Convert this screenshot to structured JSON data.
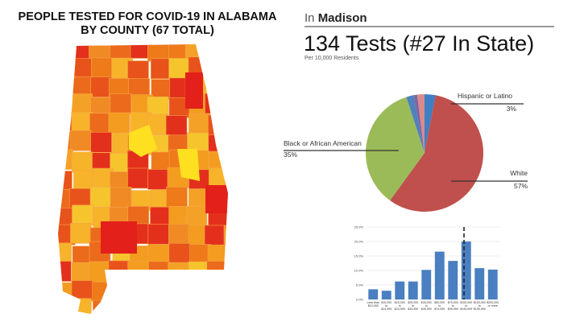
{
  "map": {
    "title_lines": [
      "PEOPLE TESTED FOR COVID-19 IN ALABAMA",
      "BY COUNTY (67 TOTAL)"
    ]
  },
  "header": {
    "prefix": "In",
    "place": "Madison",
    "tests": "134 Tests (#27 In State)",
    "subtitle": "Per 10,000 Residents"
  },
  "chart_data": [
    {
      "type": "pie",
      "categories": [
        "Hispanic or Latino",
        "White",
        "Black or African American",
        null,
        null,
        null
      ],
      "values": [
        3,
        57,
        35,
        2,
        1,
        2
      ],
      "value_labels": [
        "3%",
        "57%",
        "35%",
        null,
        null,
        null
      ],
      "colors": [
        "#3f7fc4",
        "#c0504d",
        "#9bbb59",
        "#4f81bd",
        "#8064a2",
        "#d98a8a"
      ]
    },
    {
      "type": "bar",
      "categories": [
        "Less than $10,000",
        "$10,000 to $14,999",
        "$15,000 to $24,999",
        "$25,000 to $34,999",
        "$35,000 to $49,999",
        "$50,000 to $74,999",
        "$75,000 to $99,999",
        "$100,000 to $149,999",
        "$150,000 to $199,999",
        "$200,000 or more"
      ],
      "values": [
        3.5,
        3,
        6.2,
        6.2,
        10.2,
        16.5,
        13.3,
        20,
        10.8,
        10.3
      ],
      "color": "#4a7fc1",
      "ylim": [
        0,
        25
      ],
      "yticks": [
        {
          "value": 0,
          "label": "0.0%"
        },
        {
          "value": 5,
          "label": "5.0%"
        },
        {
          "value": 10,
          "label": "10.0%"
        },
        {
          "value": 15,
          "label": "15.0%"
        },
        {
          "value": 20,
          "label": "20.0%"
        },
        {
          "value": 25,
          "label": "25.0%"
        }
      ],
      "grid": true
    }
  ]
}
